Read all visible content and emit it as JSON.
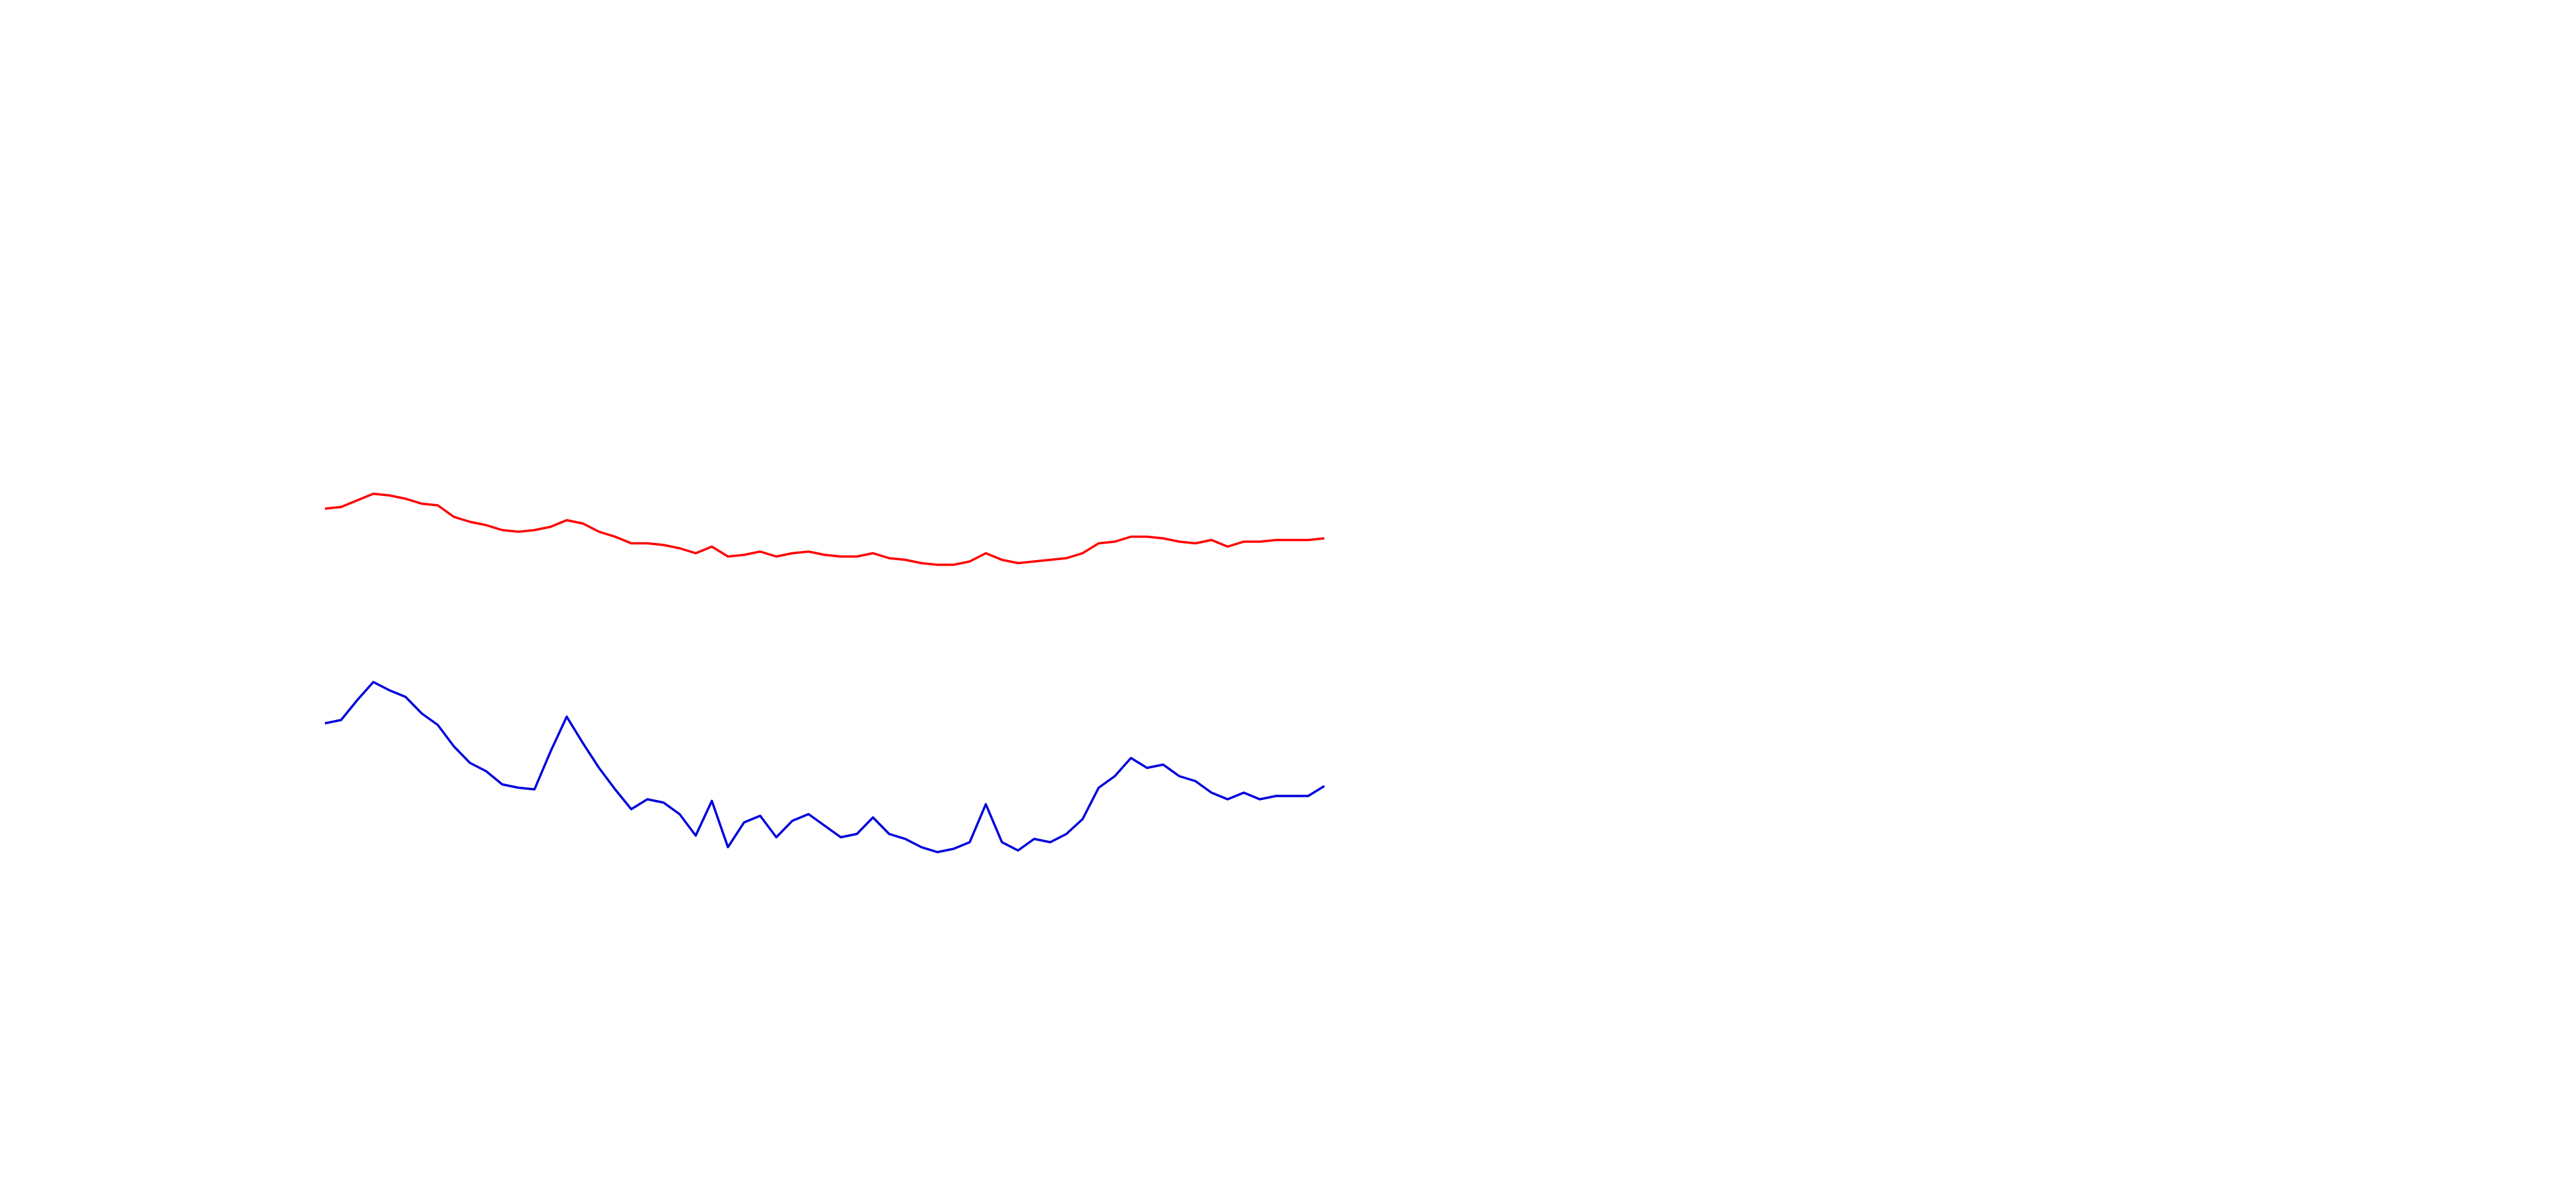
{
  "chart_data": {
    "type": "line",
    "series": [
      {
        "color": "#ff0000",
        "values": [
          412,
          413,
          417,
          421,
          420,
          418,
          415,
          414,
          407,
          404,
          402,
          399,
          398,
          399,
          401,
          405,
          403,
          398,
          395,
          391,
          391,
          390,
          388,
          385,
          389,
          383,
          384,
          386,
          383,
          385,
          386,
          384,
          383,
          383,
          385,
          382,
          381,
          379,
          378,
          378,
          380,
          385,
          381,
          379,
          380,
          381,
          382,
          385,
          391,
          392,
          395,
          395,
          394,
          392,
          391,
          393,
          389,
          392,
          392,
          393,
          393,
          393,
          394
        ]
      },
      {
        "color": "#0000dd",
        "values": [
          282,
          284,
          296,
          307,
          302,
          298,
          288,
          281,
          268,
          258,
          253,
          245,
          243,
          242,
          265,
          286,
          270,
          255,
          242,
          230,
          236,
          234,
          227,
          214,
          235,
          207,
          222,
          226,
          213,
          223,
          227,
          220,
          213,
          215,
          225,
          215,
          212,
          207,
          204,
          206,
          210,
          233,
          210,
          205,
          212,
          210,
          215,
          224,
          243,
          250,
          261,
          255,
          257,
          250,
          247,
          240,
          236,
          240,
          236,
          238,
          238,
          238,
          244
        ]
      }
    ],
    "ylim": [
      0,
      720
    ]
  }
}
